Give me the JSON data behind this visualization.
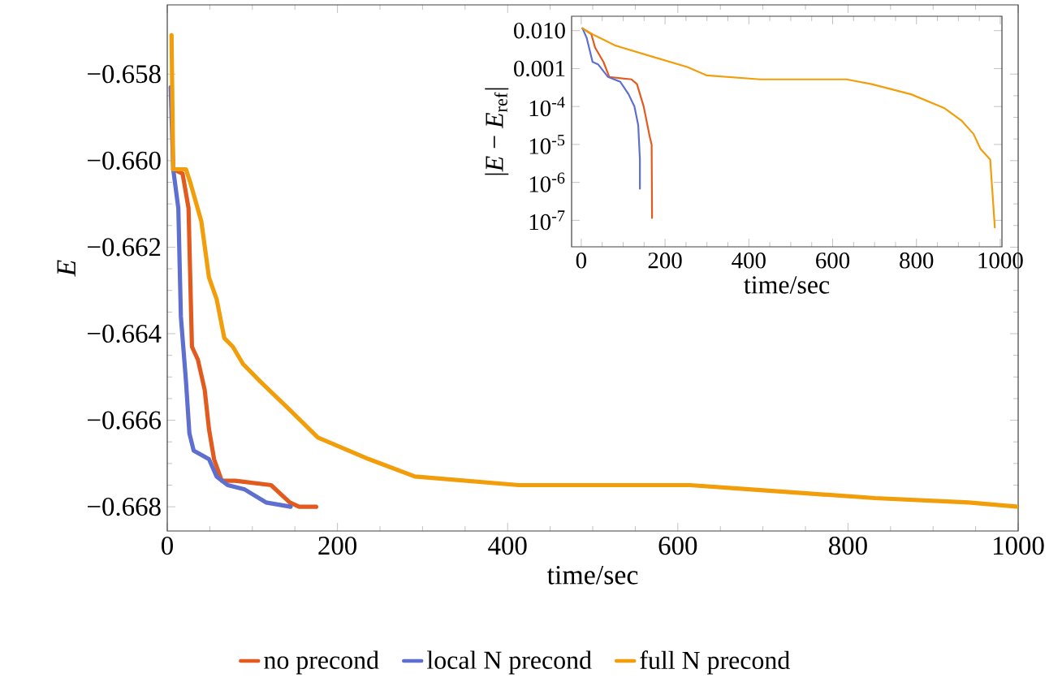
{
  "chart_data": [
    {
      "type": "line",
      "xlabel": "time/sec",
      "ylabel": "E",
      "legend": "bottom",
      "xlim": [
        0,
        1000
      ],
      "ylim": [
        -0.66856,
        -0.6564
      ],
      "xticks": [
        0,
        200,
        400,
        600,
        800,
        1000
      ],
      "yticks": [
        {
          "value": -0.668,
          "label": "−0.668"
        },
        {
          "value": -0.666,
          "label": "−0.666"
        },
        {
          "value": -0.664,
          "label": "−0.664"
        },
        {
          "value": -0.662,
          "label": "−0.662"
        },
        {
          "value": -0.66,
          "label": "−0.660"
        },
        {
          "value": -0.658,
          "label": "−0.658"
        }
      ],
      "series": [
        {
          "name": "no precond",
          "color": "#e35a1e",
          "x": [
            7,
            18,
            25,
            29,
            36,
            44,
            49,
            55,
            64,
            80,
            122,
            144,
            155,
            175
          ],
          "values": [
            -0.6602,
            -0.6603,
            -0.6611,
            -0.6643,
            -0.6646,
            -0.6653,
            -0.6662,
            -0.6669,
            -0.6674,
            -0.6674,
            -0.6675,
            -0.6679,
            -0.668,
            -0.668
          ]
        },
        {
          "name": "local N precond",
          "color": "#5e6fcf",
          "x": [
            4,
            7,
            13,
            16,
            22,
            26,
            31,
            49,
            58,
            71,
            91,
            116,
            145
          ],
          "values": [
            -0.6583,
            -0.6602,
            -0.6611,
            -0.6636,
            -0.6651,
            -0.6663,
            -0.6667,
            -0.6669,
            -0.6673,
            -0.6675,
            -0.6676,
            -0.6679,
            -0.668
          ]
        },
        {
          "name": "full N precond",
          "color": "#f29d0a",
          "x": [
            5,
            7,
            22,
            27,
            40,
            49,
            58,
            67,
            77,
            89,
            109,
            146,
            177,
            237,
            291,
            413,
            614,
            687,
            832,
            942,
            1000
          ],
          "values": [
            -0.6571,
            -0.6602,
            -0.6602,
            -0.6605,
            -0.6614,
            -0.6627,
            -0.6632,
            -0.6641,
            -0.6643,
            -0.6647,
            -0.6651,
            -0.6658,
            -0.6664,
            -0.6669,
            -0.6673,
            -0.6675,
            -0.6675,
            -0.6676,
            -0.6678,
            -0.6679,
            -0.668
          ]
        }
      ]
    },
    {
      "type": "line",
      "xlabel": "time/sec",
      "ylabel": "|*E* − *E*$_{ref}$|",
      "log": "y",
      "xlim": [
        -23,
        1004
      ],
      "ylim": [
        2e-08,
        0.024
      ],
      "xticks": [
        0,
        200,
        400,
        600,
        800,
        1000
      ],
      "yticks": [
        {
          "value": 0.01,
          "label": "0.010"
        },
        {
          "value": 0.001,
          "label": "0.001"
        },
        {
          "value": 0.0001,
          "label": "10$^{-4}$"
        },
        {
          "value": 1e-05,
          "label": "10$^{-5}$"
        },
        {
          "value": 1e-06,
          "label": "10$^{-6}$"
        },
        {
          "value": 1e-07,
          "label": "10$^{-7}$"
        }
      ],
      "series": [
        {
          "color": "#e35a1e",
          "x": [
            3,
            24,
            33,
            53,
            67,
            120,
            133,
            149,
            163,
            168,
            169
          ],
          "values": [
            0.0115,
            0.0081,
            0.0036,
            0.0015,
            0.0006,
            0.00052,
            0.00039,
            0.0001,
            1.7e-05,
            9.8e-06,
            1.15e-07
          ]
        },
        {
          "color": "#5e6fcf",
          "x": [
            3,
            13,
            27,
            40,
            64,
            93,
            113,
            127,
            136,
            140,
            140
          ],
          "values": [
            0.0115,
            0.0064,
            0.0015,
            0.0013,
            0.0006,
            0.00045,
            0.00021,
            0.0001,
            3.2e-05,
            4e-06,
            6.8e-07
          ]
        },
        {
          "color": "#f29d0a",
          "x": [
            3,
            33,
            80,
            167,
            253,
            300,
            427,
            633,
            693,
            787,
            867,
            907,
            936,
            953,
            976,
            987
          ],
          "values": [
            0.0115,
            0.0074,
            0.0041,
            0.0021,
            0.0011,
            0.00066,
            0.00052,
            0.00052,
            0.00039,
            0.00021,
            9e-05,
            4.3e-05,
            1.9e-05,
            7.6e-06,
            4e-06,
            6.5e-08
          ]
        }
      ]
    }
  ]
}
